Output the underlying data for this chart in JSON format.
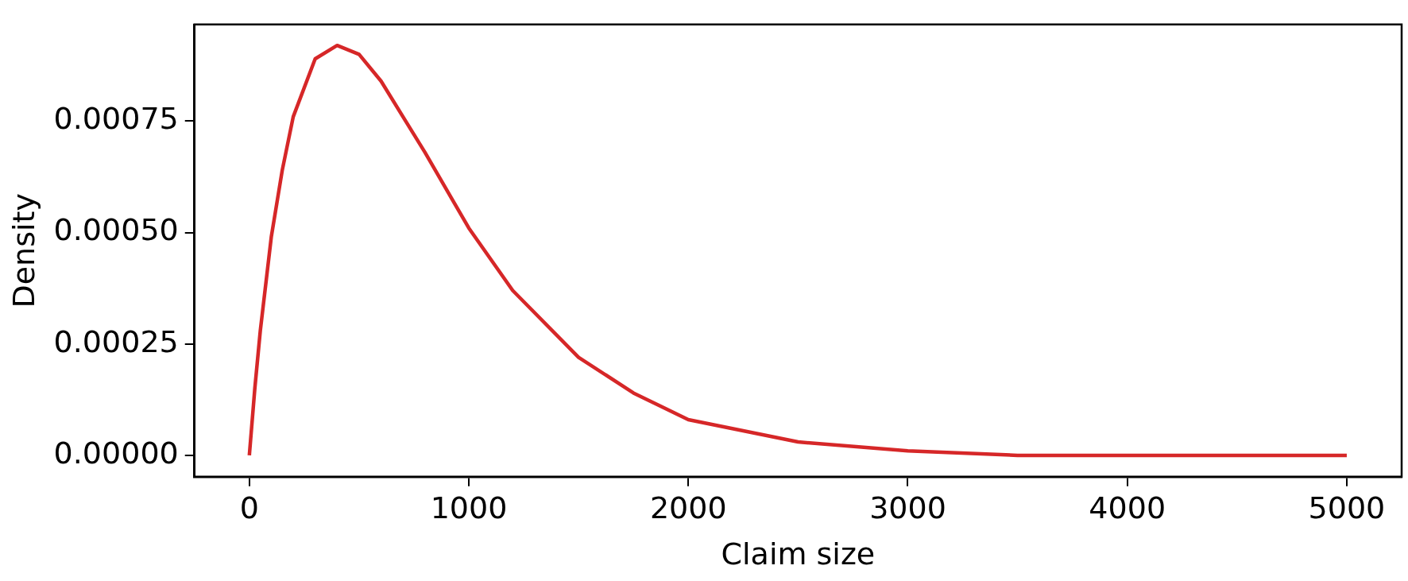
{
  "chart_data": {
    "type": "line",
    "xlabel": "Claim size",
    "ylabel": "Density",
    "x": [
      0,
      25,
      50,
      100,
      150,
      200,
      300,
      400,
      500,
      600,
      800,
      1000,
      1200,
      1500,
      1750,
      2000,
      2500,
      3000,
      3500,
      4000,
      4500,
      5000
    ],
    "series": [
      {
        "color": "#d62728",
        "values": [
          0,
          0.00015,
          0.00028,
          0.00049,
          0.00064,
          0.00076,
          0.00089,
          0.00092,
          0.0009,
          0.00084,
          0.00068,
          0.00051,
          0.00037,
          0.00022,
          0.00014,
          8e-05,
          3e-05,
          1e-05,
          0,
          0,
          0,
          0
        ]
      }
    ],
    "xlim": [
      -250,
      5250
    ],
    "xticks": [
      0,
      1000,
      2000,
      3000,
      4000,
      5000
    ],
    "ylim": [
      -4.8e-05,
      0.000967
    ],
    "yticks": [
      {
        "value": 0,
        "label": "0.00000"
      },
      {
        "value": 0.00025,
        "label": "0.00025"
      },
      {
        "value": 0.0005,
        "label": "0.00050"
      },
      {
        "value": 0.00075,
        "label": "0.00075"
      }
    ],
    "grid": false,
    "legend": false,
    "marker": "none",
    "line_style": "solid"
  }
}
